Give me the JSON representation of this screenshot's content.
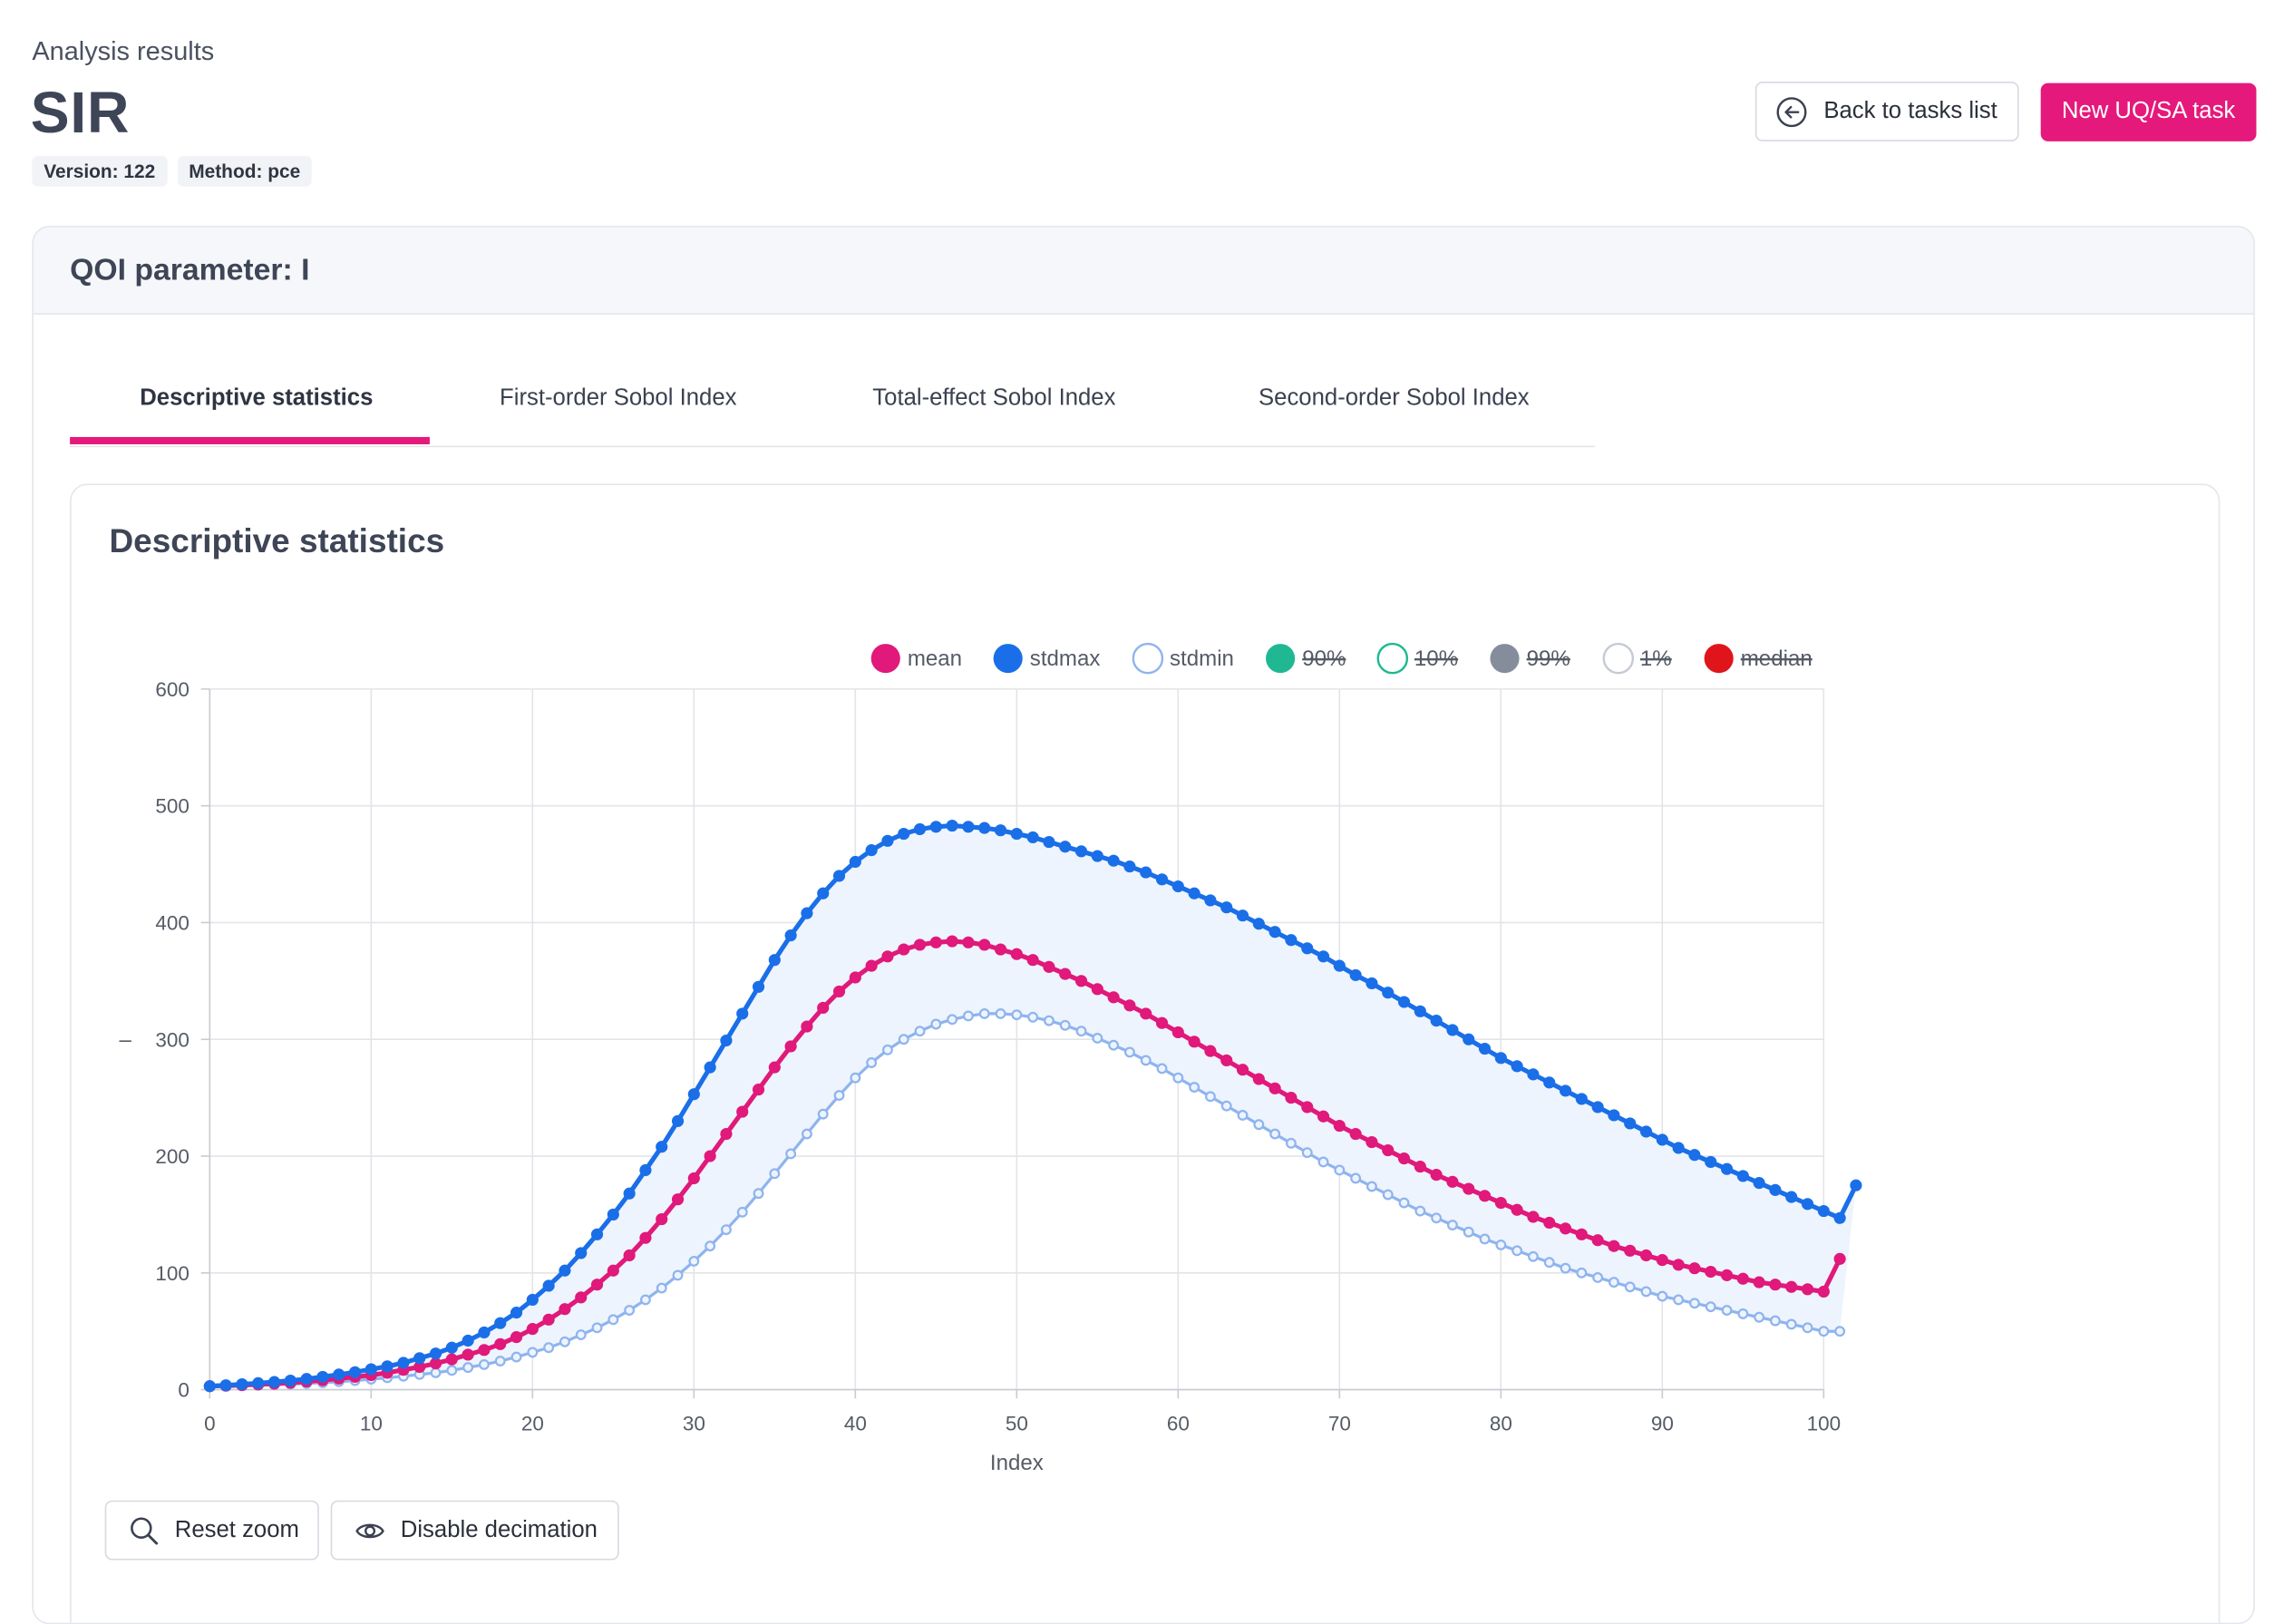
{
  "page": {
    "subtitle": "Analysis results",
    "title": "SIR",
    "badges": [
      "Version: 122",
      "Method: pce"
    ],
    "back_button": "Back to tasks list",
    "new_button": "New UQ/SA task"
  },
  "card": {
    "header": "QOI parameter: I",
    "tabs": [
      {
        "label": "Descriptive statistics",
        "active": true
      },
      {
        "label": "First-order Sobol Index",
        "active": false
      },
      {
        "label": "Total-effect Sobol Index",
        "active": false
      },
      {
        "label": "Second-order Sobol Index",
        "active": false
      }
    ],
    "section_title": "Descriptive statistics",
    "reset_zoom": "Reset zoom",
    "disable_decimation": "Disable decimation"
  },
  "icons": {
    "back": "arrow-left-circle-icon",
    "reset_zoom": "search-icon",
    "disable_decimation": "eye-icon"
  },
  "colors": {
    "accent": "#e5197b",
    "mean": "#e0197b",
    "stdmax": "#1a6fe8",
    "stdmin": "#8fb4ee",
    "band_fill": "#eef4fd"
  },
  "chart_data": {
    "type": "line",
    "xlabel": "Index",
    "ylabel": "–",
    "xlim": [
      0,
      100
    ],
    "ylim": [
      0,
      600
    ],
    "xticks": [
      0,
      10,
      20,
      30,
      40,
      50,
      60,
      70,
      80,
      90,
      100
    ],
    "yticks": [
      0,
      100,
      200,
      300,
      400,
      500,
      600
    ],
    "grid": true,
    "legend_position": "top",
    "legend": [
      {
        "name": "mean",
        "hidden": false,
        "style": "filled",
        "color": "#e0197b"
      },
      {
        "name": "stdmax",
        "hidden": false,
        "style": "filled",
        "color": "#1a6fe8"
      },
      {
        "name": "stdmin",
        "hidden": false,
        "style": "outline",
        "color": "#8fb4ee"
      },
      {
        "name": "90%",
        "hidden": true,
        "style": "filled",
        "color": "#1fb893"
      },
      {
        "name": "10%",
        "hidden": true,
        "style": "outline",
        "color": "#1fb893"
      },
      {
        "name": "99%",
        "hidden": true,
        "style": "filled",
        "color": "#858d9c"
      },
      {
        "name": "1%",
        "hidden": true,
        "style": "outline",
        "color": "#c5cad4"
      },
      {
        "name": "median",
        "hidden": true,
        "style": "filled",
        "color": "#e0141b"
      }
    ],
    "series": [
      {
        "name": "stdmax",
        "x_start": 0,
        "x_step": 1,
        "values": [
          3,
          3.8,
          4.7,
          5.6,
          6.6,
          7.8,
          9.2,
          11,
          13,
          15,
          17.5,
          20,
          23,
          27,
          31,
          36,
          42,
          49,
          57,
          66,
          77,
          89,
          102,
          117,
          133,
          150,
          168,
          188,
          208,
          230,
          253,
          276,
          299,
          322,
          345,
          368,
          389,
          408,
          425,
          440,
          452,
          462,
          470,
          476,
          480,
          482,
          483,
          482,
          481,
          479,
          476,
          473,
          469,
          465,
          461,
          457,
          453,
          448,
          443,
          437,
          431,
          425,
          419,
          413,
          406,
          399,
          392,
          385,
          378,
          371,
          363,
          355,
          348,
          340,
          332,
          324,
          316,
          308,
          300,
          292,
          284,
          277,
          270,
          263,
          256,
          249,
          242,
          235,
          228,
          221,
          214,
          207,
          201,
          195,
          189,
          183,
          177,
          171,
          165,
          159,
          153,
          147,
          175
        ]
      },
      {
        "name": "mean",
        "x_start": 0,
        "x_step": 1,
        "values": [
          3,
          3.4,
          3.9,
          4.5,
          5.2,
          6,
          7,
          8.2,
          9.5,
          11,
          12.5,
          14.5,
          17,
          19.5,
          22.5,
          26,
          30,
          34,
          39,
          45,
          52,
          60,
          69,
          79,
          90,
          102,
          115,
          130,
          146,
          163,
          181,
          200,
          219,
          238,
          257,
          276,
          294,
          311,
          327,
          341,
          353,
          363,
          371,
          377,
          381,
          383,
          384,
          383,
          381,
          377,
          373,
          368,
          362,
          356,
          350,
          343,
          336,
          329,
          322,
          314,
          306,
          298,
          290,
          282,
          274,
          266,
          258,
          250,
          242,
          234,
          226,
          219,
          212,
          205,
          198,
          191,
          184,
          178,
          172,
          166,
          160,
          154,
          148,
          143,
          138,
          133,
          128,
          123,
          119,
          115,
          111,
          107,
          104,
          101,
          98,
          95,
          92,
          90,
          88,
          86,
          84,
          112
        ]
      },
      {
        "name": "stdmin",
        "x_start": 0,
        "x_step": 1,
        "values": [
          3,
          3.2,
          3.5,
          3.8,
          4.2,
          4.7,
          5.3,
          6,
          6.8,
          7.8,
          9,
          10.2,
          11.5,
          13,
          14.5,
          16.5,
          19,
          21.5,
          24.5,
          28,
          32,
          36,
          41,
          47,
          53,
          60,
          68,
          77,
          87,
          98,
          110,
          123,
          137,
          152,
          168,
          185,
          202,
          219,
          236,
          252,
          267,
          280,
          291,
          300,
          307,
          313,
          317,
          320,
          322,
          322,
          321,
          319,
          316,
          312,
          307,
          301,
          295,
          289,
          282,
          275,
          267,
          259,
          251,
          243,
          235,
          227,
          219,
          211,
          203,
          195,
          188,
          181,
          174,
          167,
          160,
          153,
          147,
          141,
          135,
          129,
          124,
          119,
          114,
          109,
          104,
          100,
          96,
          92,
          88,
          84,
          80,
          77,
          74,
          71,
          68,
          65,
          62,
          59,
          56,
          53,
          50,
          50
        ]
      }
    ]
  }
}
